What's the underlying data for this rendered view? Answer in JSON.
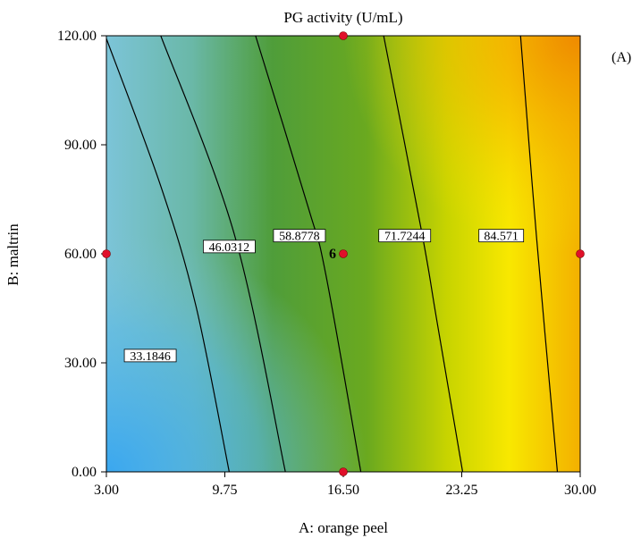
{
  "chart_data": {
    "type": "contour",
    "title": "PG activity (U/mL)",
    "panel_label": "(A)",
    "xlabel": "A: orange peel",
    "ylabel": "B: maltrin",
    "xlim": [
      3.0,
      30.0
    ],
    "ylim": [
      0.0,
      120.0
    ],
    "x_ticks": [
      "3.00",
      "9.75",
      "16.50",
      "23.25",
      "30.00"
    ],
    "y_ticks": [
      "0.00",
      "30.00",
      "60.00",
      "90.00",
      "120.00"
    ],
    "x_tick_values": [
      3.0,
      9.75,
      16.5,
      23.25,
      30.0
    ],
    "y_tick_values": [
      0.0,
      30.0,
      60.0,
      90.0,
      120.0
    ],
    "contours": [
      {
        "label": "33.1846",
        "label_pos": [
          5.5,
          32
        ],
        "path": [
          [
            3.0,
            119.2
          ],
          [
            6.1,
            78.6
          ],
          [
            8.1,
            45.7
          ],
          [
            10.0,
            0.0
          ]
        ]
      },
      {
        "label": "46.0312",
        "label_pos": [
          10.0,
          62
        ],
        "path": [
          [
            6.1,
            120.0
          ],
          [
            10.3,
            65.2
          ],
          [
            13.2,
            0.0
          ]
        ]
      },
      {
        "label": "58.8778",
        "label_pos": [
          14.0,
          65
        ],
        "path": [
          [
            11.5,
            120.0
          ],
          [
            14.5,
            72.8
          ],
          [
            15.5,
            54.4
          ],
          [
            17.5,
            0.0
          ]
        ]
      },
      {
        "label": "71.7244",
        "label_pos": [
          20.0,
          65
        ],
        "path": [
          [
            18.8,
            120.0
          ],
          [
            21.0,
            65.2
          ],
          [
            21.8,
            42.5
          ],
          [
            23.3,
            0.0
          ]
        ]
      },
      {
        "label": "84.571",
        "label_pos": [
          25.5,
          65
        ],
        "path": [
          [
            26.6,
            120.0
          ],
          [
            27.5,
            65.2
          ],
          [
            28.7,
            0.0
          ]
        ]
      }
    ],
    "design_points": [
      {
        "x": 16.5,
        "y": 120.0
      },
      {
        "x": 3.0,
        "y": 60.0
      },
      {
        "x": 16.5,
        "y": 60.0,
        "label": "6"
      },
      {
        "x": 30.0,
        "y": 60.0
      },
      {
        "x": 16.5,
        "y": 0.0
      }
    ],
    "colors": {
      "low": "#3aaee8",
      "mid": "#5fa829",
      "high_mid": "#f3e600",
      "high": "#f08c00",
      "point": "#e0102a"
    }
  }
}
